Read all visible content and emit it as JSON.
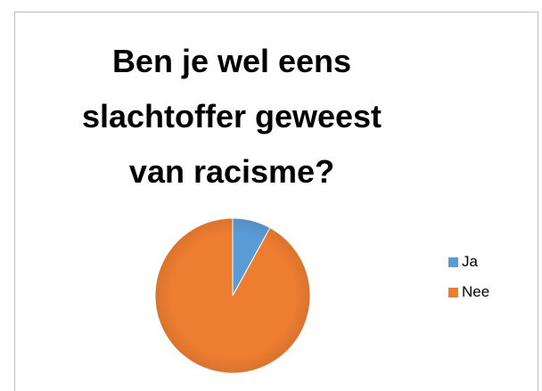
{
  "chart_data": {
    "type": "pie",
    "title": "Ben je wel eens slachtoffer geweest van racisme?",
    "categories": [
      "Ja",
      "Nee"
    ],
    "values": [
      8,
      92
    ],
    "unit": "%",
    "colors": [
      "#5b9bd5",
      "#ed7d31"
    ],
    "start_angle_deg": 0,
    "direction": "clockwise",
    "legend_position": "right",
    "legend": [
      {
        "label": "Ja",
        "color": "#5b9bd5"
      },
      {
        "label": "Nee",
        "color": "#ed7d31"
      }
    ]
  }
}
